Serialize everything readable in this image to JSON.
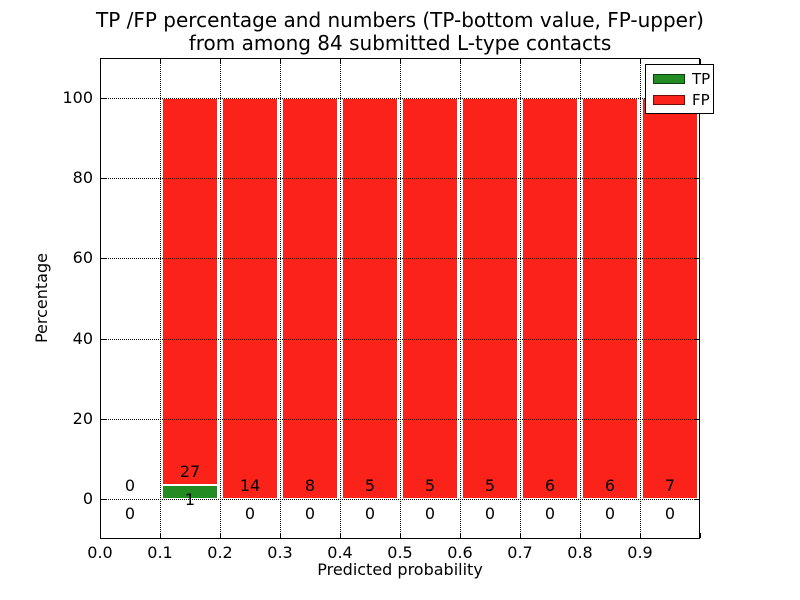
{
  "title": {
    "line1": "TP /FP percentage and numbers (TP-bottom value, FP-upper)",
    "line2": "from among 84 submitted L-type contacts"
  },
  "axes": {
    "xlabel": "Predicted probability",
    "ylabel": "Percentage",
    "x_tick_labels": [
      "0.0",
      "0.1",
      "0.2",
      "0.3",
      "0.4",
      "0.5",
      "0.6",
      "0.7",
      "0.8",
      "0.9"
    ],
    "y_tick_labels": [
      "0",
      "20",
      "40",
      "60",
      "80",
      "100"
    ],
    "xlim": [
      0.0,
      1.0
    ],
    "ylim": [
      -10,
      110
    ],
    "grid_style": "dotted"
  },
  "legend": {
    "position": "upper-right",
    "items": [
      {
        "label": "TP",
        "color": "#228b22"
      },
      {
        "label": "FP",
        "color": "#fb2319"
      }
    ]
  },
  "chart_data": {
    "type": "bar",
    "stacked": true,
    "title": "TP /FP percentage and numbers (TP-bottom value, FP-upper) from among 84 submitted L-type contacts",
    "xlabel": "Predicted probability",
    "ylabel": "Percentage",
    "total_contacts": 84,
    "bin_edges": [
      0.0,
      0.1,
      0.2,
      0.3,
      0.4,
      0.5,
      0.6,
      0.7,
      0.8,
      0.9,
      1.0
    ],
    "series": [
      {
        "name": "TP",
        "color": "#228b22",
        "counts": [
          0,
          1,
          0,
          0,
          0,
          0,
          0,
          0,
          0,
          0
        ],
        "pct_heights": [
          0,
          3.571,
          0,
          0,
          0,
          0,
          0,
          0,
          0,
          0
        ]
      },
      {
        "name": "FP",
        "color": "#fb2319",
        "counts": [
          0,
          27,
          14,
          8,
          5,
          5,
          5,
          6,
          6,
          7
        ],
        "pct_heights": [
          0,
          96.429,
          100,
          100,
          100,
          100,
          100,
          100,
          100,
          100
        ]
      }
    ],
    "bar_edge_color": "#ffffff",
    "ylim": [
      -10,
      110
    ],
    "xlim": [
      0.0,
      1.0
    ],
    "grid": true,
    "legend_position": "upper right"
  }
}
